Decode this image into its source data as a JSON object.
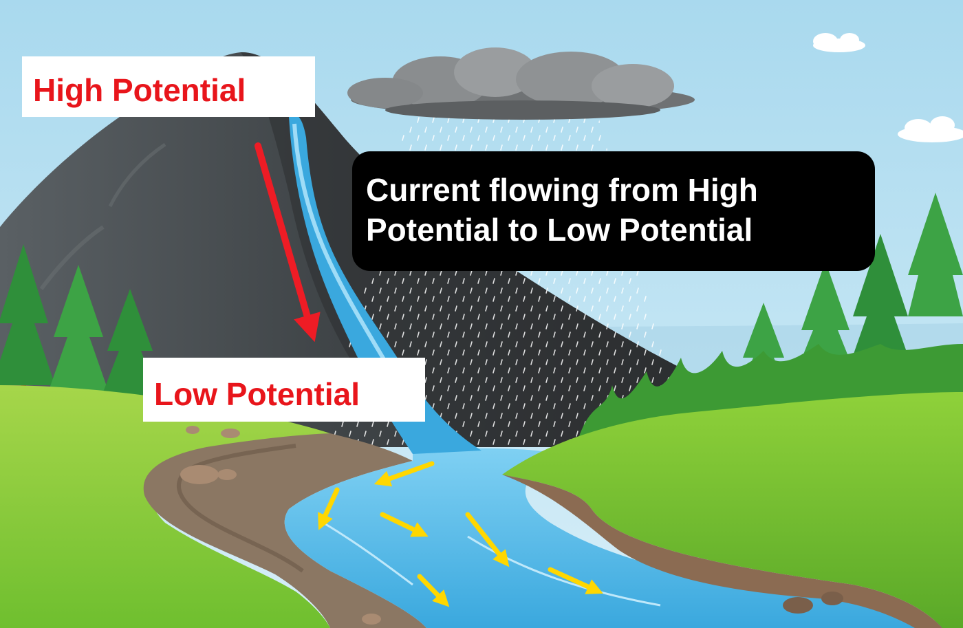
{
  "labels": {
    "high": "High Potential",
    "low": "Low Potential",
    "callout_line1": "Current flowing from High",
    "callout_line2": "Potential to Low Potential"
  },
  "colors": {
    "label_text": "#e8151b",
    "arrow_red": "#ee1c25",
    "arrow_yellow": "#ffd700",
    "sky": "#b9e2f2",
    "grass": "#7cc540",
    "water": "#4fb6e6",
    "mountain": "#3c3f41"
  },
  "icons": {
    "cloud": "cloud-icon",
    "tree": "pine-tree-icon",
    "arrow": "arrow-icon"
  }
}
